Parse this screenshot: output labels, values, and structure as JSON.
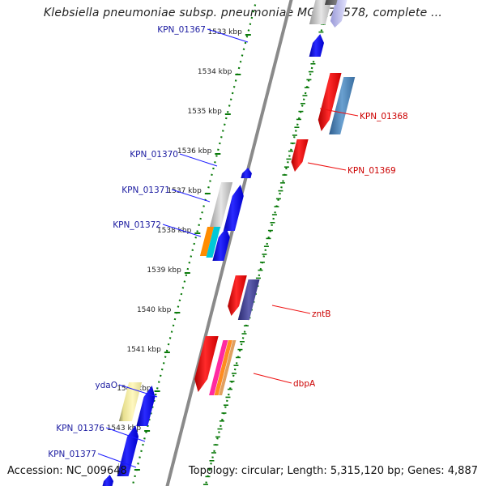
{
  "title": "Klebsiella pneumoniae subsp. pneumoniae MGH 78578, complete ...",
  "footer": {
    "accession": "Accession: NC_009648",
    "summary": "Topology: circular; Length: 5,315,120 bp; Genes: 4,887"
  },
  "ticks": [
    {
      "label": "1533 kbp"
    },
    {
      "label": "1534 kbp"
    },
    {
      "label": "1535 kbp"
    },
    {
      "label": "1536 kbp"
    },
    {
      "label": "1537 kbp"
    },
    {
      "label": "1538 kbp"
    },
    {
      "label": "1539 kbp"
    },
    {
      "label": "1540 kbp"
    },
    {
      "label": "1541 kbp"
    },
    {
      "label": "1542 kbp"
    },
    {
      "label": "1543 kbp"
    },
    {
      "label": "kbp"
    }
  ],
  "left_labels": [
    "KPN_01367",
    "KPN_01370",
    "KPN_01371",
    "KPN_01372",
    "ydaO",
    "KPN_01376",
    "KPN_01377"
  ],
  "right_labels": [
    "KPN_01368",
    "KPN_01369",
    "zntB",
    "dbpA"
  ],
  "colors": {
    "forward_gene": "#0000ee",
    "reverse_gene": "#ee0000",
    "left_label": "#1a1aa0",
    "right_label": "#cc0000",
    "dots": "#0a7a0a",
    "backbone": "#8a8a8a"
  }
}
